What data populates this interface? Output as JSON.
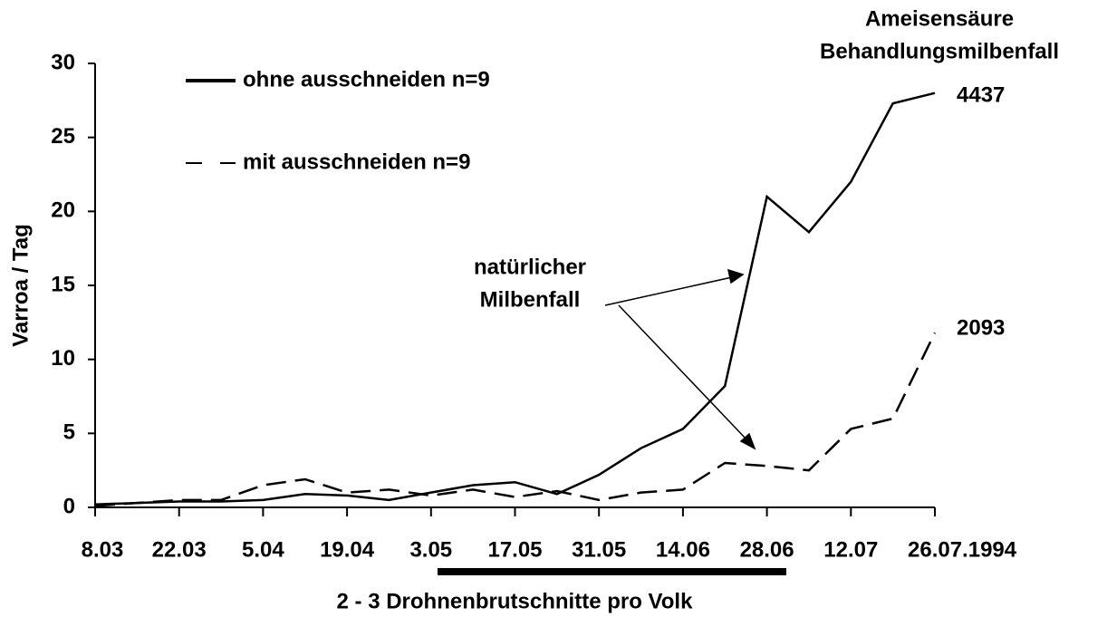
{
  "chart_data": {
    "type": "line",
    "y_label": "Varroa / Tag",
    "x_label": "2 - 3 Drohnenbrutschnitte pro Volk",
    "categories": [
      "8.03",
      null,
      "22.03",
      null,
      "5.04",
      null,
      "19.04",
      null,
      "3.05",
      null,
      "17.05",
      null,
      "31.05",
      null,
      "14.06",
      null,
      "28.06",
      null,
      "12.07",
      null,
      "26.07.1994"
    ],
    "series": [
      {
        "name": "ohne ausschneiden n=9",
        "color": "#000000",
        "dash": "solid",
        "values": [
          0.2,
          0.3,
          0.4,
          0.4,
          0.5,
          0.9,
          0.8,
          0.5,
          1.0,
          1.5,
          1.7,
          0.9,
          2.2,
          4.0,
          5.3,
          8.2,
          21,
          18.6,
          22,
          27.3,
          28
        ]
      },
      {
        "name": "mit ausschneiden n=9",
        "color": "#000000",
        "dash": "dashed",
        "values": [
          0.1,
          0.3,
          0.5,
          0.5,
          1.5,
          1.9,
          1.0,
          1.2,
          0.8,
          1.2,
          0.7,
          1.1,
          0.5,
          1.0,
          1.2,
          3.0,
          2.8,
          2.5,
          5.3,
          6.0,
          11.8
        ]
      }
    ],
    "ylim": [
      0,
      30
    ],
    "yticks": [
      0,
      5,
      10,
      15,
      20,
      25,
      30
    ],
    "annotations": [
      "Ameisensäure",
      "Behandlungsmilbenfall",
      "4437",
      "2093",
      "natürlicher",
      "Milbenfall"
    ]
  }
}
